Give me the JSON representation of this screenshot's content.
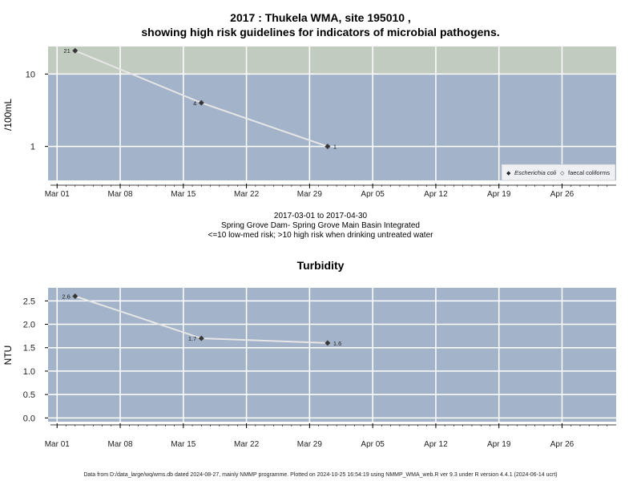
{
  "titles": {
    "main_line1": "2017 : Thukela WMA, site 195010 ,",
    "main_line2": "showing high risk guidelines for indicators of microbial pathogens.",
    "date_range": "2017-03-01 to 2017-04-30",
    "site_name": "Spring Grove Dam- Spring Grove Main Basin Integrated",
    "risk_note": "<=10 low-med risk; >10 high risk when drinking untreated water",
    "turbidity_title": "Turbidity",
    "footer": "Data from D:/data_large/wq/wms.db dated 2024-08-27, mainly NMMP programme. Plotted on 2024-10-25 16:54:19 using NMMP_WMA_web.R ver 9.3 under R version 4.4.1 (2024-06-14 ucrt)"
  },
  "colors": {
    "panel_bg": "#a3b3c9",
    "high_risk_band": "#c2cbbf",
    "grid": "#ffffff",
    "series_line": "#e6e6e6",
    "point": "#333333"
  },
  "chart_data": [
    {
      "type": "line",
      "scale": "log",
      "ylabel": "/100mL",
      "xlabel": "",
      "x_ticks": [
        "Mar 01",
        "Mar 08",
        "Mar 15",
        "Mar 22",
        "Mar 29",
        "Apr 05",
        "Apr 12",
        "Apr 19",
        "Apr 26"
      ],
      "x_tick_dates": [
        "2017-03-01",
        "2017-03-08",
        "2017-03-15",
        "2017-03-22",
        "2017-03-29",
        "2017-04-05",
        "2017-04-12",
        "2017-04-19",
        "2017-04-26"
      ],
      "xlim": [
        "2017-02-28",
        "2017-05-02"
      ],
      "ylim": [
        0.34,
        24
      ],
      "y_ticks": [
        "1",
        "10"
      ],
      "y_tick_values": [
        1,
        10
      ],
      "high_risk_threshold": 10,
      "series": [
        {
          "name": "Escherichia coli",
          "x": [
            "2017-03-03",
            "2017-03-17",
            "2017-03-31"
          ],
          "values": [
            21,
            4,
            1
          ],
          "labels": [
            "21",
            "4",
            "1"
          ]
        }
      ],
      "legend": {
        "placement": "bottom-right",
        "entries": [
          "Escherichia coli",
          "faecal coliforms"
        ],
        "markers": [
          "◆",
          "◇"
        ]
      }
    },
    {
      "type": "line",
      "scale": "linear",
      "title": "Turbidity",
      "ylabel": "NTU",
      "xlabel": "",
      "x_ticks": [
        "Mar 01",
        "Mar 08",
        "Mar 15",
        "Mar 22",
        "Mar 29",
        "Apr 05",
        "Apr 12",
        "Apr 19",
        "Apr 26"
      ],
      "x_tick_dates": [
        "2017-03-01",
        "2017-03-08",
        "2017-03-15",
        "2017-03-22",
        "2017-03-29",
        "2017-04-05",
        "2017-04-12",
        "2017-04-19",
        "2017-04-26"
      ],
      "xlim": [
        "2017-02-28",
        "2017-05-02"
      ],
      "ylim": [
        -0.08,
        2.78
      ],
      "y_ticks": [
        "0.0",
        "0.5",
        "1.0",
        "1.5",
        "2.0",
        "2.5"
      ],
      "y_tick_values": [
        0,
        0.5,
        1.0,
        1.5,
        2.0,
        2.5
      ],
      "series": [
        {
          "name": "",
          "x": [
            "2017-03-03",
            "2017-03-17",
            "2017-03-31"
          ],
          "values": [
            2.6,
            1.7,
            1.6
          ],
          "labels": [
            "2.6",
            "1.7",
            "1.6"
          ]
        }
      ]
    }
  ]
}
